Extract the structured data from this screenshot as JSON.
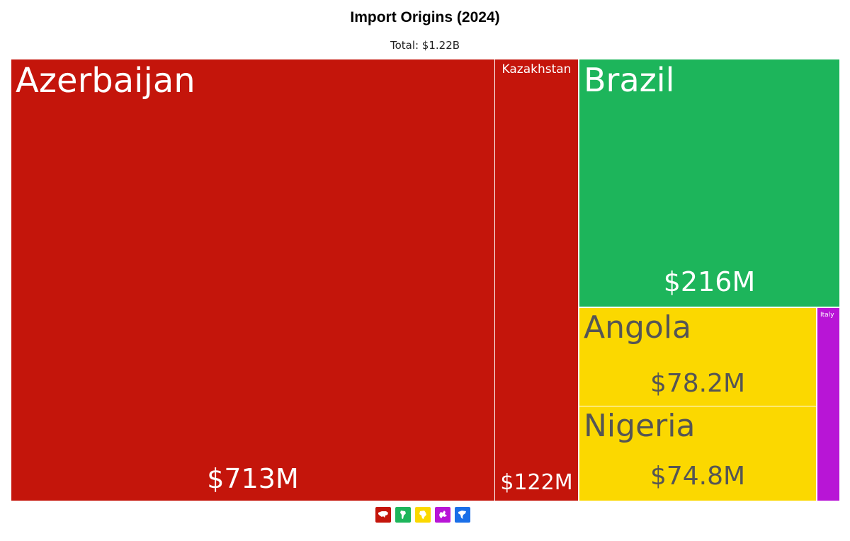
{
  "title": "Import Origins (2024)",
  "subtitle": "Total: $1.22B",
  "colors": {
    "asia": "#c4150b",
    "south_america": "#1db55b",
    "africa": "#fbd800",
    "europe": "#b815d6",
    "north_america": "#1a6fe8"
  },
  "chart_data": {
    "type": "treemap",
    "title": "Import Origins (2024)",
    "subtitle": "Total: $1.22B",
    "total": "$1.22B",
    "items": [
      {
        "name": "Azerbaijan",
        "value": 713,
        "label": "$713M",
        "group": "asia",
        "color": "#c4150b"
      },
      {
        "name": "Kazakhstan",
        "value": 122,
        "label": "$122M",
        "group": "asia",
        "color": "#c4150b"
      },
      {
        "name": "Brazil",
        "value": 216,
        "label": "$216M",
        "group": "south_america",
        "color": "#1db55b"
      },
      {
        "name": "Angola",
        "value": 78.2,
        "label": "$78.2M",
        "group": "africa",
        "color": "#fbd800"
      },
      {
        "name": "Nigeria",
        "value": 74.8,
        "label": "$74.8M",
        "group": "africa",
        "color": "#fbd800"
      },
      {
        "name": "Italy",
        "value": 17,
        "label": "",
        "group": "europe",
        "color": "#b815d6"
      }
    ],
    "legend": [
      {
        "group": "asia",
        "icon": "asia-continent-icon",
        "color": "#c4150b"
      },
      {
        "group": "south_america",
        "icon": "south-america-continent-icon",
        "color": "#1db55b"
      },
      {
        "group": "africa",
        "icon": "africa-continent-icon",
        "color": "#fbd800"
      },
      {
        "group": "europe",
        "icon": "europe-continent-icon",
        "color": "#b815d6"
      },
      {
        "group": "north_america",
        "icon": "north-america-continent-icon",
        "color": "#1a6fe8"
      }
    ]
  }
}
